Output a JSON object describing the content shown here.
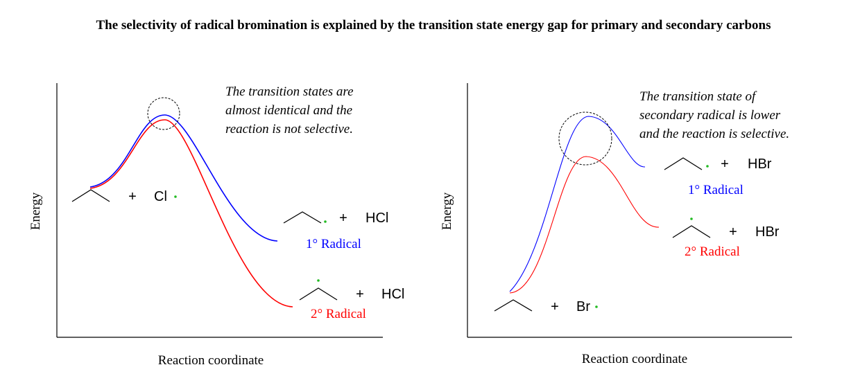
{
  "title": "The selectivity of radical bromination is explained by the transition state energy gap for primary and secondary carbons",
  "colors": {
    "primary": "#0000ff",
    "secondary": "#ff0000",
    "radical_dot": "#22bb22",
    "text": "#000000"
  },
  "left_panel": {
    "y_axis_label": "Energy",
    "x_axis_label": "Reaction coordinate",
    "note_lines": [
      "The transition states are",
      "almost identical and the",
      "reaction is not selective."
    ],
    "reactants": {
      "plus": "+",
      "reagent": "Cl"
    },
    "primary_product": {
      "plus": "+",
      "byproduct": "HCl",
      "label": "1° Radical"
    },
    "secondary_product": {
      "plus": "+",
      "byproduct": "HCl",
      "label": "2° Radical"
    }
  },
  "right_panel": {
    "y_axis_label": "Energy",
    "x_axis_label": "Reaction coordinate",
    "note_lines": [
      "The transition state of",
      "secondary radical is lower",
      "and the reaction is selective."
    ],
    "reactants": {
      "plus": "+",
      "reagent": "Br"
    },
    "primary_product": {
      "plus": "+",
      "byproduct": "HBr",
      "label": "1° Radical"
    },
    "secondary_product": {
      "plus": "+",
      "byproduct": "HBr",
      "label": "2° Radical"
    }
  }
}
